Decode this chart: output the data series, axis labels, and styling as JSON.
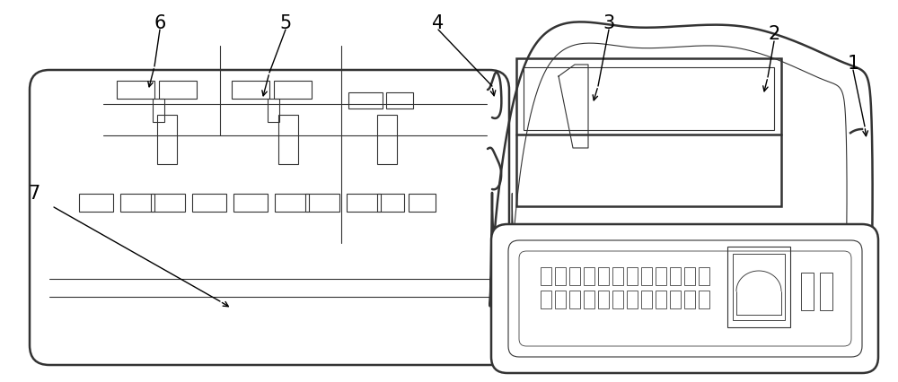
{
  "bg_color": "#ffffff",
  "lc": "#333333",
  "lw_main": 1.5,
  "lw_thick": 1.8,
  "lw_thin": 0.8,
  "figsize": [
    10.0,
    4.26
  ],
  "dpi": 100,
  "label_fontsize": 15
}
